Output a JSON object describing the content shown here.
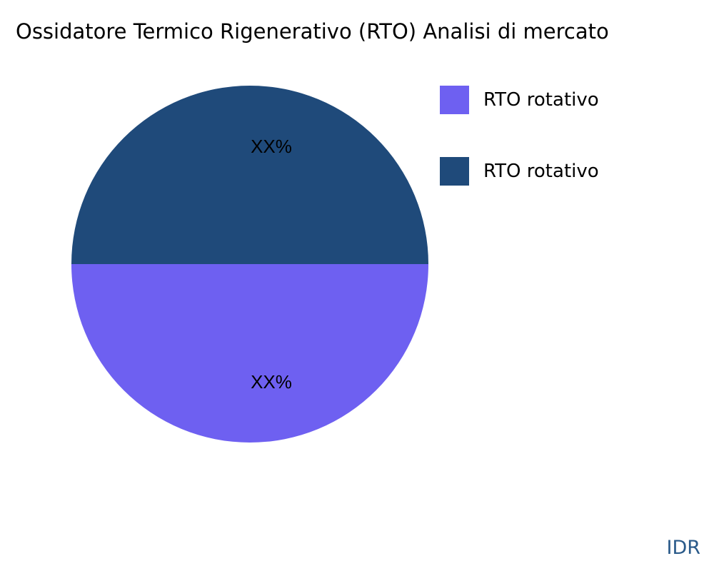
{
  "chart_data": {
    "type": "pie",
    "title": "Ossidatore Termico Rigenerativo (RTO) Analisi di mercato",
    "slices": [
      {
        "name": "RTO rotativo",
        "value": 50,
        "label": "XX%",
        "color": "#6e60f1"
      },
      {
        "name": "RTO rotativo",
        "value": 50,
        "label": "XX%",
        "color": "#1f4a7a"
      }
    ],
    "legend_position": "top-right"
  },
  "brand": "IDR"
}
